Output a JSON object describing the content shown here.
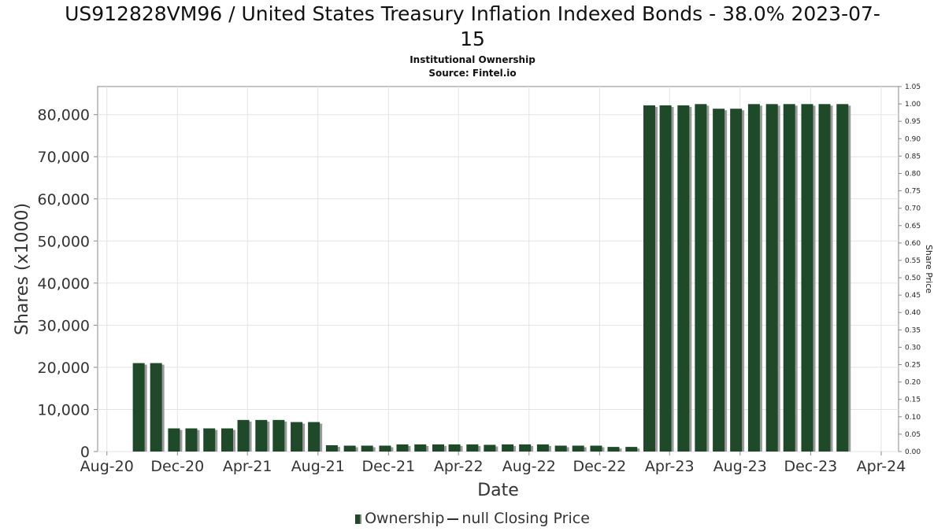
{
  "title_line1": "US912828VM96 / United States Treasury Inflation Indexed Bonds - 38.0% 2023-07-",
  "title_line2": "15",
  "subtitle": "Institutional Ownership",
  "source": "Source: Fintel.io",
  "legend": {
    "series1": "Ownership",
    "series2": "null Closing Price"
  },
  "colors": {
    "bar": "#1f4a2a",
    "bar_shadow": "#9a9a9a",
    "grid": "#e3e3e3",
    "axis": "#888888"
  },
  "chart_data": {
    "type": "bar",
    "xlabel": "Date",
    "ylabel": "Shares (x1000)",
    "y2label": "Share Price",
    "ylim": [
      0,
      86667
    ],
    "y2lim": [
      0,
      1.05
    ],
    "grid": true,
    "legend_position": "bottom",
    "xticks": [
      "Aug-20",
      "Dec-20",
      "Apr-21",
      "Aug-21",
      "Dec-21",
      "Apr-22",
      "Aug-22",
      "Dec-22",
      "Apr-23",
      "Aug-23",
      "Dec-23",
      "Apr-24"
    ],
    "yticks": [
      "0",
      "10,000",
      "20,000",
      "30,000",
      "40,000",
      "50,000",
      "60,000",
      "70,000",
      "80,000"
    ],
    "y2ticks": [
      "0.00",
      "0.05",
      "0.10",
      "0.15",
      "0.20",
      "0.25",
      "0.30",
      "0.35",
      "0.40",
      "0.45",
      "0.50",
      "0.55",
      "0.60",
      "0.65",
      "0.70",
      "0.75",
      "0.80",
      "0.85",
      "0.90",
      "0.95",
      "1.00",
      "1.05"
    ],
    "series": [
      {
        "name": "Ownership",
        "points": [
          {
            "x": "2020-09-25",
            "y": 21000
          },
          {
            "x": "2020-10-25",
            "y": 21000
          },
          {
            "x": "2020-11-25",
            "y": 5500
          },
          {
            "x": "2020-12-25",
            "y": 5500
          },
          {
            "x": "2021-01-25",
            "y": 5500
          },
          {
            "x": "2021-02-25",
            "y": 5500
          },
          {
            "x": "2021-03-25",
            "y": 7500
          },
          {
            "x": "2021-04-25",
            "y": 7500
          },
          {
            "x": "2021-05-25",
            "y": 7500
          },
          {
            "x": "2021-06-25",
            "y": 7000
          },
          {
            "x": "2021-07-25",
            "y": 7000
          },
          {
            "x": "2021-08-25",
            "y": 1500
          },
          {
            "x": "2021-09-25",
            "y": 1400
          },
          {
            "x": "2021-10-25",
            "y": 1400
          },
          {
            "x": "2021-11-25",
            "y": 1400
          },
          {
            "x": "2021-12-25",
            "y": 1700
          },
          {
            "x": "2022-01-25",
            "y": 1700
          },
          {
            "x": "2022-02-25",
            "y": 1700
          },
          {
            "x": "2022-03-25",
            "y": 1700
          },
          {
            "x": "2022-04-25",
            "y": 1700
          },
          {
            "x": "2022-05-25",
            "y": 1600
          },
          {
            "x": "2022-06-25",
            "y": 1700
          },
          {
            "x": "2022-07-25",
            "y": 1700
          },
          {
            "x": "2022-08-25",
            "y": 1700
          },
          {
            "x": "2022-09-25",
            "y": 1400
          },
          {
            "x": "2022-10-25",
            "y": 1400
          },
          {
            "x": "2022-11-25",
            "y": 1400
          },
          {
            "x": "2022-12-25",
            "y": 1100
          },
          {
            "x": "2023-01-25",
            "y": 1100
          },
          {
            "x": "2023-02-25",
            "y": 82200
          },
          {
            "x": "2023-03-25",
            "y": 82200
          },
          {
            "x": "2023-04-25",
            "y": 82200
          },
          {
            "x": "2023-05-25",
            "y": 82500
          },
          {
            "x": "2023-06-25",
            "y": 81400
          },
          {
            "x": "2023-07-25",
            "y": 81400
          },
          {
            "x": "2023-08-25",
            "y": 82500
          },
          {
            "x": "2023-09-25",
            "y": 82500
          },
          {
            "x": "2023-10-25",
            "y": 82500
          },
          {
            "x": "2023-11-25",
            "y": 82500
          },
          {
            "x": "2023-12-25",
            "y": 82500
          },
          {
            "x": "2024-01-25",
            "y": 82500
          }
        ]
      }
    ]
  }
}
